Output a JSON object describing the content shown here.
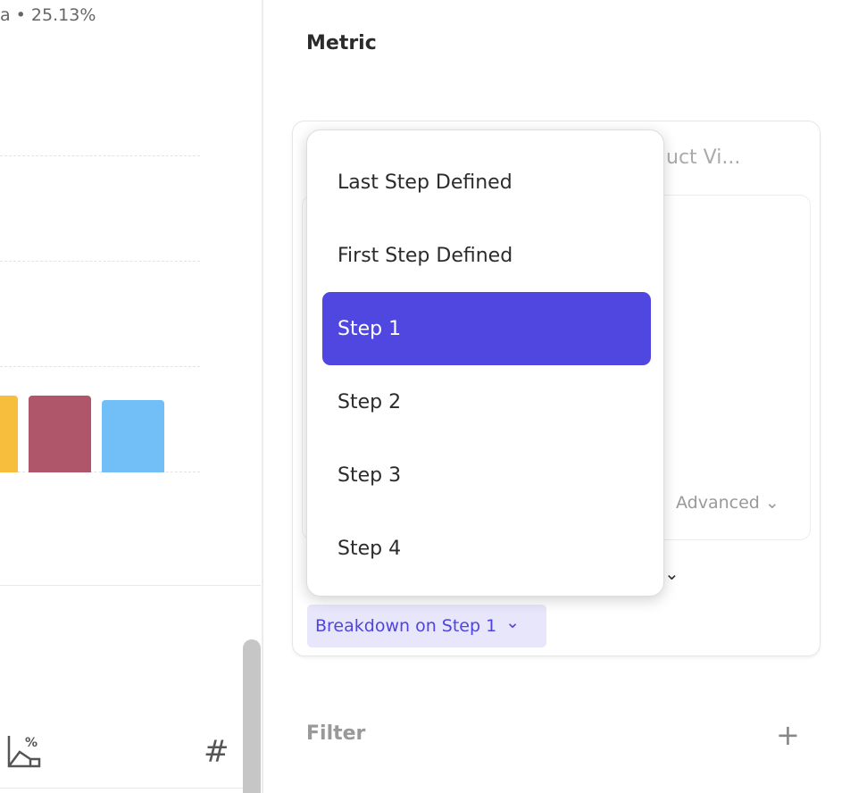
{
  "chart": {
    "summary": "a • 25.13%",
    "bar_colors": [
      "#f7bd3c",
      "#b0566b",
      "#72bff7"
    ],
    "bar_levels_percent": [
      100,
      100,
      94
    ]
  },
  "toolbar_icons": [
    "chart-percent-icon",
    "hash-icon"
  ],
  "panel": {
    "metric_title": "Metric",
    "hidden_event_label": "uct Vi...",
    "advanced_label": "Advanced",
    "breakdown_label": "Breakdown on Step 1",
    "filter_label": "Filter",
    "accent": "#5046e0"
  },
  "dropdown": {
    "items": [
      "Last Step Defined",
      "First Step Defined",
      "Step 1",
      "Step 2",
      "Step 3",
      "Step 4"
    ],
    "selected": "Step 1"
  }
}
